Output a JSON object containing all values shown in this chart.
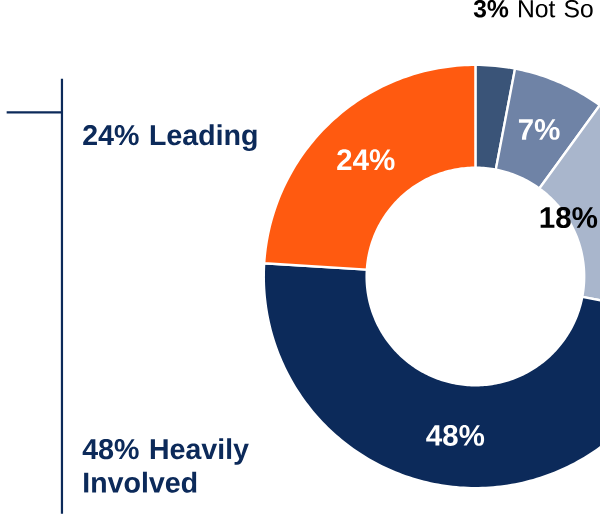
{
  "chart_data": {
    "type": "donut",
    "categories": [
      "Not So",
      null,
      null,
      "Heavily Involved",
      "Leading"
    ],
    "values": [
      3,
      7,
      18,
      48,
      24
    ],
    "colors": [
      "#3a5478",
      "#6f83a6",
      "#a9b6cc",
      "#0c2a5a",
      "#ff5a10"
    ],
    "value_labels": [
      "3%",
      "7%",
      "18%",
      "48%",
      "24%"
    ]
  }
}
